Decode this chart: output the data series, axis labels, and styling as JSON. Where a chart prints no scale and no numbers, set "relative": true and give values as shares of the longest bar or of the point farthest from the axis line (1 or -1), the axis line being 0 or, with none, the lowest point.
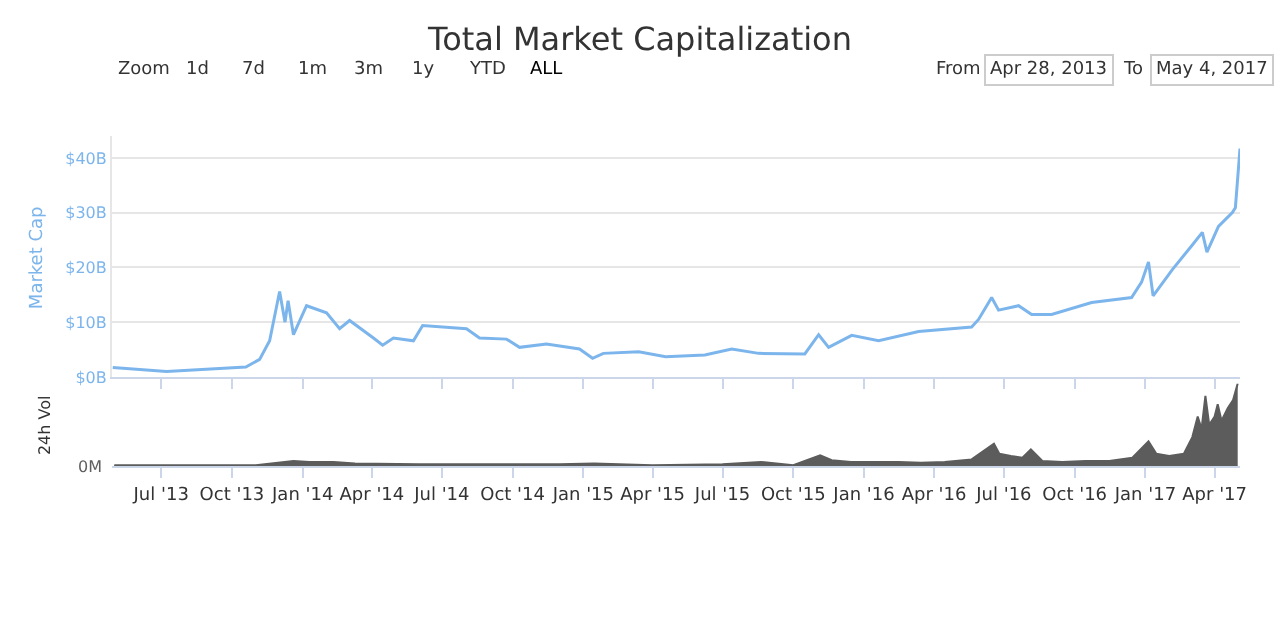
{
  "chart_data": [
    {
      "type": "line",
      "title": "Total Market Capitalization",
      "ylabel": "Market Cap",
      "color": "#7cb5ec",
      "grid": "y",
      "legend": false,
      "marker": "none",
      "line_style": "solid",
      "tick_labels": "y",
      "annotations": [
        "Zoom",
        "1d",
        "7d",
        "1m",
        "3m",
        "1y",
        "YTD",
        "ALL",
        "From",
        "Apr 28, 2013",
        "To",
        "May 4, 2017"
      ],
      "x": [
        "2013-04-29",
        "2013-07-08",
        "2013-10-19",
        "2013-11-06",
        "2013-11-19",
        "2013-12-02",
        "2013-12-09",
        "2013-12-13",
        "2013-12-20",
        "2014-01-06",
        "2014-02-01",
        "2014-02-18",
        "2014-03-03",
        "2014-04-03",
        "2014-04-15",
        "2014-04-29",
        "2014-05-25",
        "2014-06-06",
        "2014-08-02",
        "2014-08-19",
        "2014-09-23",
        "2014-10-10",
        "2014-11-14",
        "2014-12-27",
        "2015-01-13",
        "2015-01-27",
        "2015-03-14",
        "2015-04-18",
        "2015-06-08",
        "2015-07-13",
        "2015-08-17",
        "2015-10-16",
        "2015-11-03",
        "2015-11-16",
        "2015-12-16",
        "2016-01-20",
        "2016-03-12",
        "2016-05-20",
        "2016-05-29",
        "2016-06-15",
        "2016-06-24",
        "2016-07-20",
        "2016-08-06",
        "2016-09-01",
        "2016-10-23",
        "2016-12-14",
        "2016-12-27",
        "2017-01-05",
        "2017-01-11",
        "2017-02-05",
        "2017-03-03",
        "2017-03-16",
        "2017-03-22",
        "2017-04-06",
        "2017-04-24",
        "2017-04-28",
        "2017-05-04"
      ],
      "values": [
        1.7,
        1.0,
        1.8,
        3.2,
        6.6,
        15.6,
        10,
        13.9,
        7.7,
        13,
        11.7,
        8.8,
        10.3,
        7.1,
        5.8,
        7.1,
        6.6,
        9.4,
        8.8,
        7.1,
        6.9,
        5.4,
        6.0,
        5.1,
        3.4,
        4.3,
        4.6,
        3.7,
        4.0,
        5.1,
        4.3,
        4.2,
        7.7,
        5.4,
        7.6,
        6.6,
        8.3,
        9.1,
        10.5,
        14.5,
        12.2,
        13.0,
        11.4,
        11.4,
        13.6,
        14.5,
        17.3,
        21.0,
        14.8,
        19.6,
        24.1,
        26.4,
        22.8,
        27.5,
        30.0,
        30.9,
        41.7
      ],
      "xlim": [
        "2013-04-28",
        "2017-05-04"
      ],
      "ylim": [
        0,
        44
      ],
      "yticks": [
        {
          "value": 0,
          "label": "$0B"
        },
        {
          "value": 10,
          "label": "$10B"
        },
        {
          "value": 20,
          "label": "$20B"
        },
        {
          "value": 30,
          "label": "$30B"
        },
        {
          "value": 40,
          "label": "$40B"
        }
      ]
    },
    {
      "type": "area",
      "relative": true,
      "ylabel": "24h Vol",
      "color": "#5c5c5c",
      "legend": false,
      "grid": false,
      "tick_labels": "x",
      "annotations": [
        "0M"
      ],
      "xlim": [
        "2013-04-28",
        "2017-05-04"
      ],
      "xticks": [
        {
          "value": "2013-07-01",
          "label": "Jul '13"
        },
        {
          "value": "2013-10-01",
          "label": "Oct '13"
        },
        {
          "value": "2014-01-01",
          "label": "Jan '14"
        },
        {
          "value": "2014-04-01",
          "label": "Apr '14"
        },
        {
          "value": "2014-07-01",
          "label": "Jul '14"
        },
        {
          "value": "2014-10-01",
          "label": "Oct '14"
        },
        {
          "value": "2015-01-01",
          "label": "Jan '15"
        },
        {
          "value": "2015-04-01",
          "label": "Apr '15"
        },
        {
          "value": "2015-07-01",
          "label": "Jul '15"
        },
        {
          "value": "2015-10-01",
          "label": "Oct '15"
        },
        {
          "value": "2016-01-01",
          "label": "Jan '16"
        },
        {
          "value": "2016-04-01",
          "label": "Apr '16"
        },
        {
          "value": "2016-07-01",
          "label": "Jul '16"
        },
        {
          "value": "2016-10-01",
          "label": "Oct '16"
        },
        {
          "value": "2017-01-01",
          "label": "Jan '17"
        },
        {
          "value": "2017-04-01",
          "label": "Apr '17"
        }
      ],
      "x": [
        "2013-05-01",
        "2013-08-01",
        "2013-11-01",
        "2013-12-20",
        "2014-01-10",
        "2014-02-10",
        "2014-03-10",
        "2014-06-01",
        "2014-09-01",
        "2014-12-01",
        "2015-01-15",
        "2015-04-01",
        "2015-07-01",
        "2015-08-20",
        "2015-10-01",
        "2015-11-05",
        "2015-11-20",
        "2015-12-15",
        "2016-01-15",
        "2016-02-15",
        "2016-03-15",
        "2016-04-15",
        "2016-05-20",
        "2016-06-18",
        "2016-06-25",
        "2016-07-10",
        "2016-07-25",
        "2016-08-05",
        "2016-08-20",
        "2016-09-15",
        "2016-10-15",
        "2016-11-15",
        "2016-12-15",
        "2017-01-05",
        "2017-01-15",
        "2017-02-01",
        "2017-02-20",
        "2017-03-03",
        "2017-03-10",
        "2017-03-15",
        "2017-03-20",
        "2017-03-25",
        "2017-04-01",
        "2017-04-05",
        "2017-04-10",
        "2017-04-18",
        "2017-04-25",
        "2017-05-01"
      ],
      "values": [
        0.01,
        0.01,
        0.01,
        0.06,
        0.05,
        0.05,
        0.03,
        0.02,
        0.02,
        0.02,
        0.03,
        0.01,
        0.02,
        0.05,
        0.01,
        0.13,
        0.07,
        0.05,
        0.05,
        0.05,
        0.04,
        0.05,
        0.08,
        0.27,
        0.15,
        0.12,
        0.1,
        0.2,
        0.06,
        0.05,
        0.06,
        0.06,
        0.1,
        0.3,
        0.15,
        0.12,
        0.15,
        0.35,
        0.6,
        0.45,
        0.85,
        0.5,
        0.6,
        0.75,
        0.55,
        0.7,
        0.8,
        1.0
      ]
    }
  ]
}
